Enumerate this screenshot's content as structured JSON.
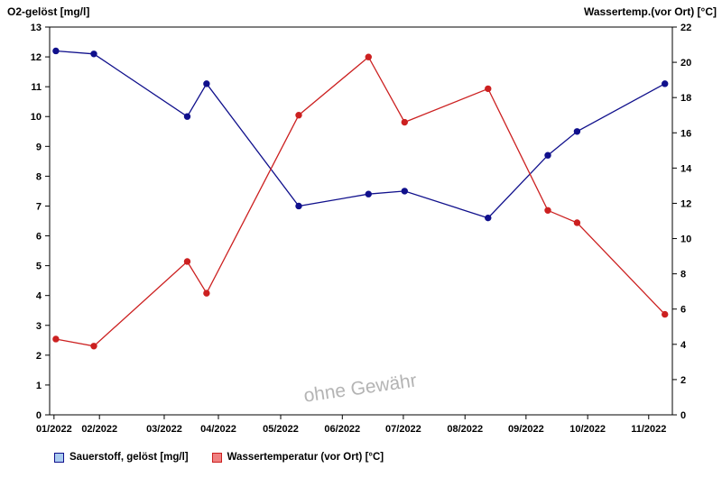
{
  "page": {
    "background": "#ffffff"
  },
  "chart_data": {
    "type": "line",
    "title": "",
    "watermark": "ohne Gewähr",
    "grid": false,
    "legend_position": "bottom",
    "left_axis": {
      "label": "O2-gelöst [mg/l]",
      "min": 0,
      "max": 13,
      "tick_step": 1
    },
    "right_axis": {
      "label": "Wassertemp.(vor Ort) [°C]",
      "min": 0,
      "max": 22,
      "tick_step": 2
    },
    "x_ticks": [
      {
        "label": "01/2022",
        "pos": 0.007
      },
      {
        "label": "02/2022",
        "pos": 0.08
      },
      {
        "label": "03/2022",
        "pos": 0.184
      },
      {
        "label": "04/2022",
        "pos": 0.271
      },
      {
        "label": "05/2022",
        "pos": 0.371
      },
      {
        "label": "06/2022",
        "pos": 0.47
      },
      {
        "label": "07/2022",
        "pos": 0.568
      },
      {
        "label": "08/2022",
        "pos": 0.667
      },
      {
        "label": "09/2022",
        "pos": 0.765
      },
      {
        "label": "10/2022",
        "pos": 0.864
      },
      {
        "label": "11/2022",
        "pos": 0.962
      }
    ],
    "x": [
      0.01,
      0.071,
      0.221,
      0.252,
      0.4,
      0.512,
      0.57,
      0.704,
      0.8,
      0.847,
      0.988
    ],
    "series": [
      {
        "name": "Sauerstoff, gelöst [mg/l]",
        "axis": "left",
        "color": "#10108c",
        "legend_fill": "#aaccf0",
        "legend_border": "#10108c",
        "values": [
          12.2,
          12.1,
          10.0,
          11.1,
          7.0,
          7.4,
          7.5,
          6.6,
          8.7,
          9.5,
          11.1
        ]
      },
      {
        "name": "Wassertemperatur (vor Ort) [°C]",
        "axis": "right",
        "color": "#cc2020",
        "legend_fill": "#f08080",
        "legend_border": "#cc2020",
        "values": [
          4.3,
          3.9,
          8.7,
          6.9,
          17.0,
          20.3,
          16.6,
          18.5,
          11.6,
          10.9,
          5.7
        ]
      }
    ]
  }
}
